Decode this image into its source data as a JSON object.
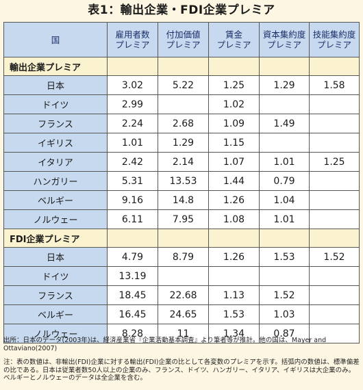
{
  "title": "表1：輸出企業・FDI企業プレミア",
  "headers": {
    "country": "国",
    "cols": [
      [
        "雇用者数",
        "プレミア"
      ],
      [
        "付加価値",
        "プレミア"
      ],
      [
        "賃金",
        "プレミア"
      ],
      [
        "資本集約度",
        "プレミア"
      ],
      [
        "技能集約度",
        "プレミア"
      ]
    ]
  },
  "sections": [
    {
      "label": "輸出企業プレミア",
      "rows": [
        {
          "country": "日本",
          "values": [
            "3.02",
            "5.22",
            "1.25",
            "1.29",
            "1.58"
          ]
        },
        {
          "country": "ドイツ",
          "values": [
            "2.99",
            "",
            "1.02",
            "",
            ""
          ]
        },
        {
          "country": "フランス",
          "values": [
            "2.24",
            "2.68",
            "1.09",
            "1.49",
            ""
          ]
        },
        {
          "country": "イギリス",
          "values": [
            "1.01",
            "1.29",
            "1.15",
            "",
            ""
          ]
        },
        {
          "country": "イタリア",
          "values": [
            "2.42",
            "2.14",
            "1.07",
            "1.01",
            "1.25"
          ]
        },
        {
          "country": "ハンガリー",
          "values": [
            "5.31",
            "13.53",
            "1.44",
            "0.79",
            ""
          ]
        },
        {
          "country": "ベルギー",
          "values": [
            "9.16",
            "14.8",
            "1.26",
            "1.04",
            ""
          ]
        },
        {
          "country": "ノルウェー",
          "values": [
            "6.11",
            "7.95",
            "1.08",
            "1.01",
            ""
          ]
        }
      ]
    },
    {
      "label": "FDI企業プレミア",
      "rows": [
        {
          "country": "日本",
          "values": [
            "4.79",
            "8.79",
            "1.26",
            "1.53",
            "1.52"
          ]
        },
        {
          "country": "ドイツ",
          "values": [
            "13.19",
            "",
            "",
            "",
            ""
          ]
        },
        {
          "country": "フランス",
          "values": [
            "18.45",
            "22.68",
            "1.13",
            "1.52",
            ""
          ]
        },
        {
          "country": "ベルギー",
          "values": [
            "16.45",
            "24.65",
            "1.53",
            "1.03",
            ""
          ]
        },
        {
          "country": "ノルウェー",
          "values": [
            "8.28",
            "11",
            "1.34",
            "0.87",
            ""
          ]
        }
      ]
    }
  ],
  "source_note": "出所：日本のデータ(2003年)は、経済産業省『企業活動基本調査』より筆者等が推計。他の国は、Mayer and Ottaviano(2007)",
  "note": "注：表の数値は、非輸出(FDI)企業に対する輸出(FDI)企業の比として各変数のプレミアを示す。括弧内の数値は、標準偏差の比である。日本は従業者数50人以上の企業のみ、フランス、ドイツ、ハンガリー、イタリア、イギリスは大企業のみ。ベルギーとノルウェーのデータは全企業を含む。"
}
